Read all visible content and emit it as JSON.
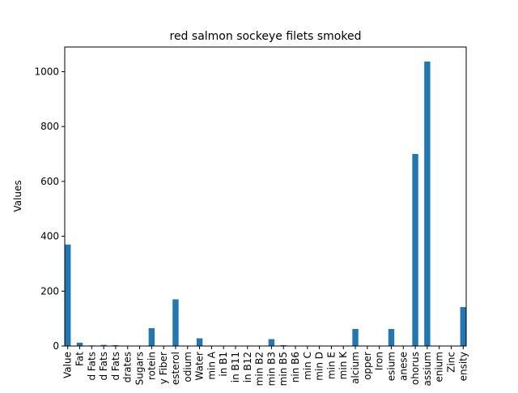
{
  "chart_data": {
    "type": "bar",
    "title": "red salmon sockeye filets smoked",
    "xlabel": "",
    "ylabel": "Values",
    "ylim": [
      0,
      1090
    ],
    "yticks": [
      0,
      200,
      400,
      600,
      800,
      1000
    ],
    "grid": false,
    "bar_color": "#1f77b4",
    "categories": [
      "Value",
      "Fat",
      "d Fats",
      "d Fats",
      "d Fats",
      "drates",
      "Sugars",
      "rotein",
      "y Fiber",
      "esterol",
      "odium",
      "Water",
      "min A",
      "in B1",
      "in B11",
      "in B12",
      "min B2",
      "min B3",
      "min B5",
      "nin B6",
      "min C",
      "min D",
      "min E",
      "min K",
      "alcium",
      "opper",
      "Iron",
      "esium",
      "anese",
      "ohorus",
      "assium",
      "enium",
      "Zinc",
      "ensity"
    ],
    "values": [
      370,
      12,
      2,
      4,
      3,
      0,
      0,
      65,
      0,
      170,
      0,
      28,
      0,
      0,
      0,
      0,
      0,
      25,
      3,
      1,
      0,
      0,
      0,
      0,
      62,
      0,
      0,
      62,
      0,
      700,
      1037,
      0,
      0,
      142
    ]
  }
}
